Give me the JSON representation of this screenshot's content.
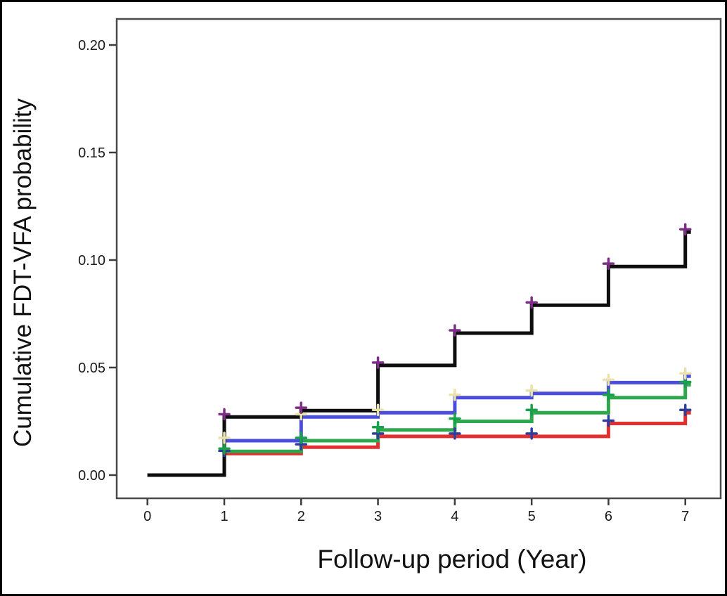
{
  "figure": {
    "y_axis_title": "Cumulative FDT-VFA probability",
    "x_axis_title": "Follow-up period (Year)"
  },
  "chart_data": {
    "type": "line",
    "subtype": "step-cumulative-incidence",
    "title": "",
    "xlabel": "Follow-up period (Year)",
    "ylabel": "Cumulative FDT-VFA probability",
    "x": [
      0,
      1,
      2,
      3,
      4,
      5,
      6,
      7
    ],
    "x_tick_labels": [
      "0",
      "1",
      "2",
      "3",
      "4",
      "5",
      "6",
      "7"
    ],
    "y_tick_labels": [
      "0.00",
      "0.05",
      "0.10",
      "0.15",
      "0.20"
    ],
    "y_tick_values": [
      0.0,
      0.05,
      0.1,
      0.15,
      0.2
    ],
    "xlim": [
      -0.4,
      7.46
    ],
    "ylim": [
      -0.0108,
      0.2121
    ],
    "grid": false,
    "legend": "none",
    "marker_glyph": "+",
    "frame_color": "#4a4a4a",
    "tick_label_color": "#1a1a1a",
    "series": [
      {
        "name": "red-curve",
        "color": "#E23030",
        "marker_color": "#2E3E9F",
        "values": [
          0.0,
          0.01,
          0.013,
          0.018,
          0.018,
          0.018,
          0.024,
          0.029
        ]
      },
      {
        "name": "green-curve",
        "color": "#2FA74D",
        "marker_color": "#18A04B",
        "values": [
          0.0,
          0.011,
          0.016,
          0.021,
          0.025,
          0.029,
          0.036,
          0.042
        ]
      },
      {
        "name": "blue-curve",
        "color": "#4B4DDB",
        "marker_color": "#E9E2AC",
        "values": [
          0.0,
          0.016,
          0.027,
          0.029,
          0.036,
          0.038,
          0.043,
          0.046
        ]
      },
      {
        "name": "black-curve",
        "color": "#0D0D0D",
        "marker_color": "#7C2E86",
        "values": [
          0.0,
          0.027,
          0.03,
          0.051,
          0.066,
          0.079,
          0.097,
          0.113
        ]
      }
    ]
  }
}
